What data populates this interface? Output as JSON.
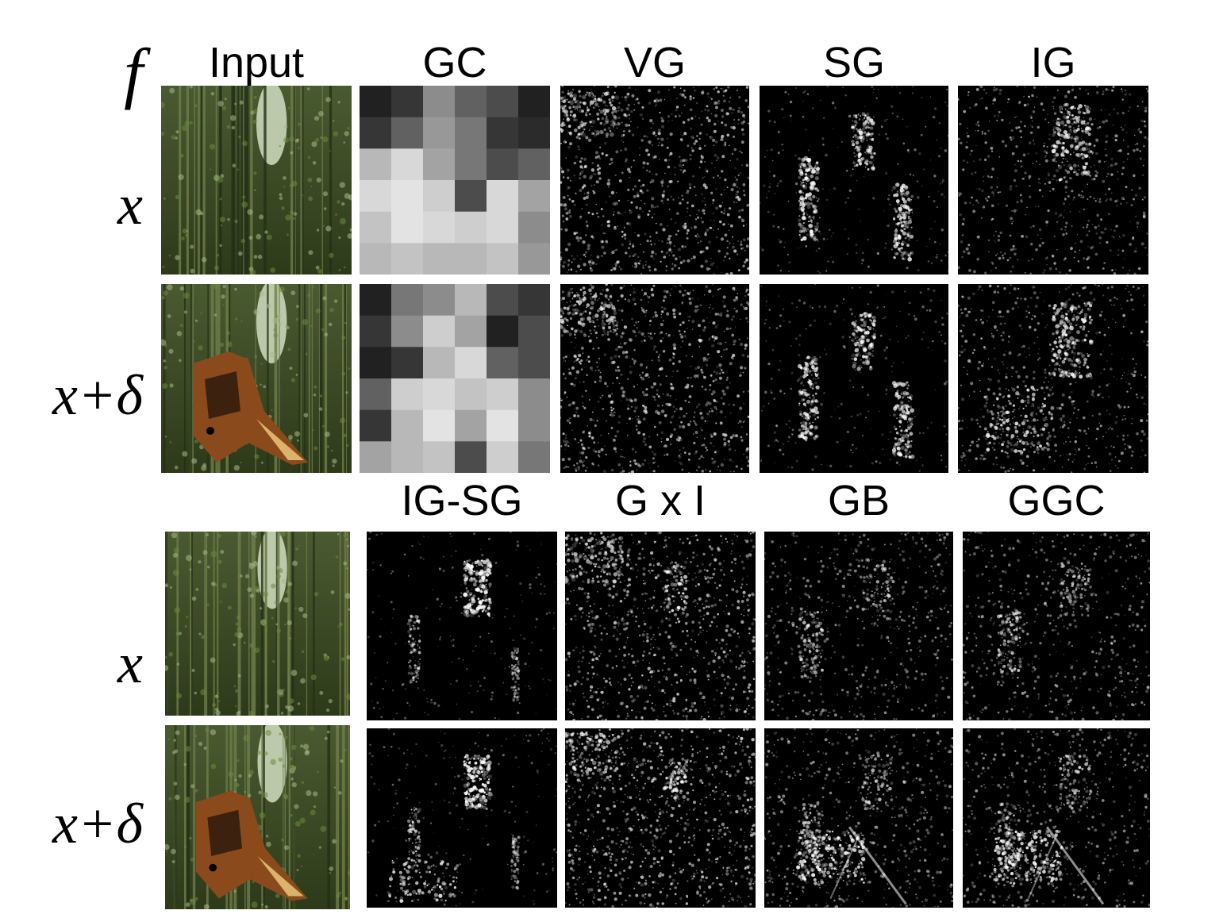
{
  "figure": {
    "f_label": "f",
    "top_headers": [
      "Input",
      "GC",
      "VG",
      "SG",
      "IG"
    ],
    "bottom_headers": [
      "IG-SG",
      "G x I",
      "GB",
      "GGC"
    ],
    "row_labels": {
      "top_x": "x",
      "top_xd": "x+δ",
      "bottom_x": "x",
      "bottom_xd": "x+δ"
    }
  },
  "colors": {
    "background": "#ffffff",
    "saliency_base": "#000000",
    "forest_dark": "#233016",
    "forest_light": "#c9d6b8",
    "dog_fur": "#8a4a1c"
  }
}
